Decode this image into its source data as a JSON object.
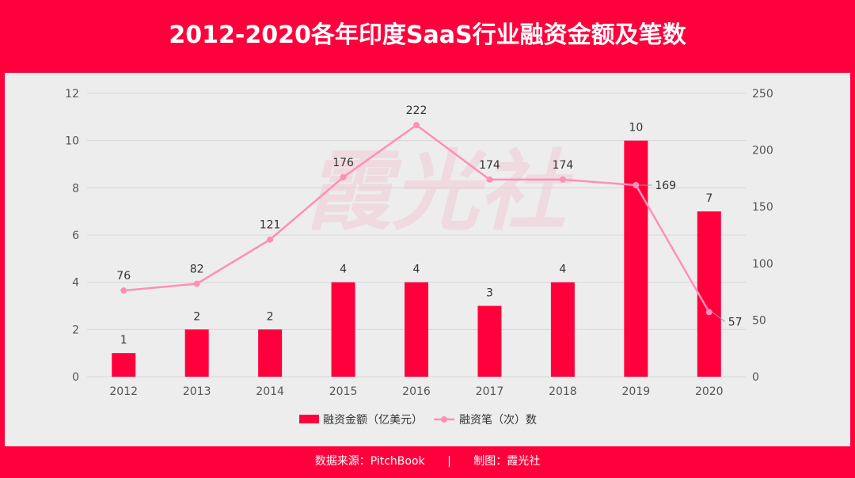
{
  "title": "2012-2020各年印度SaaS行业融资金额及笔数",
  "watermark": "霞光社",
  "footer": {
    "source": "数据来源：PitchBook",
    "separator": "|",
    "credit": "制图：霞光社"
  },
  "colors": {
    "bar": "#FF003C",
    "line": "#FF8FB8",
    "background": "#EDEDED",
    "frame": "#FF003C"
  },
  "chart_data": {
    "type": "bar+line",
    "categories": [
      "2012",
      "2013",
      "2014",
      "2015",
      "2016",
      "2017",
      "2018",
      "2019",
      "2020"
    ],
    "series": [
      {
        "name": "融资金额（亿美元）",
        "type": "bar",
        "axis": "left",
        "values": [
          1,
          2,
          2,
          4,
          4,
          3,
          4,
          10,
          7
        ]
      },
      {
        "name": "融资笔（次）数",
        "type": "line",
        "axis": "right",
        "values": [
          76,
          82,
          121,
          176,
          222,
          174,
          174,
          169,
          57
        ]
      }
    ],
    "y_left": {
      "range": [
        0,
        12
      ],
      "ticks": [
        0,
        2,
        4,
        6,
        8,
        10,
        12
      ]
    },
    "y_right": {
      "range": [
        0,
        250
      ],
      "ticks": [
        0,
        50,
        100,
        150,
        200,
        250
      ]
    },
    "grid": true,
    "legend": "bottom"
  }
}
